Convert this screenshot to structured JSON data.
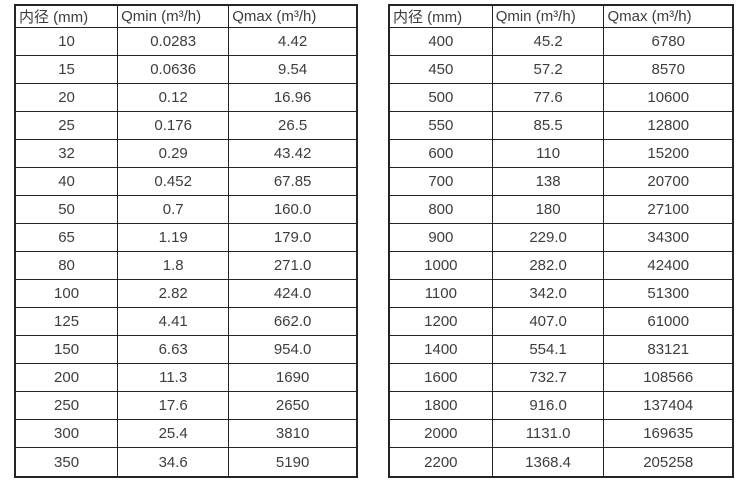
{
  "page": {
    "background": "#ffffff"
  },
  "colors": {
    "border": "#242424",
    "text": "#3d3d3d"
  },
  "tables": [
    {
      "id": "small-diameters",
      "headers": [
        "内径 (mm)",
        "Qmin (m³/h)",
        "Qmax (m³/h)"
      ],
      "rows": [
        [
          "10",
          "0.0283",
          "4.42"
        ],
        [
          "15",
          "0.0636",
          "9.54"
        ],
        [
          "20",
          "0.12",
          "16.96"
        ],
        [
          "25",
          "0.176",
          "26.5"
        ],
        [
          "32",
          "0.29",
          "43.42"
        ],
        [
          "40",
          "0.452",
          "67.85"
        ],
        [
          "50",
          "0.7",
          "160.0"
        ],
        [
          "65",
          "1.19",
          "179.0"
        ],
        [
          "80",
          "1.8",
          "271.0"
        ],
        [
          "100",
          "2.82",
          "424.0"
        ],
        [
          "125",
          "4.41",
          "662.0"
        ],
        [
          "150",
          "6.63",
          "954.0"
        ],
        [
          "200",
          "11.3",
          "1690"
        ],
        [
          "250",
          "17.6",
          "2650"
        ],
        [
          "300",
          "25.4",
          "3810"
        ],
        [
          "350",
          "34.6",
          "5190"
        ]
      ]
    },
    {
      "id": "large-diameters",
      "headers": [
        "内径 (mm)",
        "Qmin (m³/h)",
        "Qmax (m³/h)"
      ],
      "rows": [
        [
          "400",
          "45.2",
          "6780"
        ],
        [
          "450",
          "57.2",
          "8570"
        ],
        [
          "500",
          "77.6",
          "10600"
        ],
        [
          "550",
          "85.5",
          "12800"
        ],
        [
          "600",
          "110",
          "15200"
        ],
        [
          "700",
          "138",
          "20700"
        ],
        [
          "800",
          "180",
          "27100"
        ],
        [
          "900",
          "229.0",
          "34300"
        ],
        [
          "1000",
          "282.0",
          "42400"
        ],
        [
          "1100",
          "342.0",
          "51300"
        ],
        [
          "1200",
          "407.0",
          "61000"
        ],
        [
          "1400",
          "554.1",
          "83121"
        ],
        [
          "1600",
          "732.7",
          "108566"
        ],
        [
          "1800",
          "916.0",
          "137404"
        ],
        [
          "2000",
          "1131.0",
          "169635"
        ],
        [
          "2200",
          "1368.4",
          "205258"
        ]
      ]
    }
  ]
}
